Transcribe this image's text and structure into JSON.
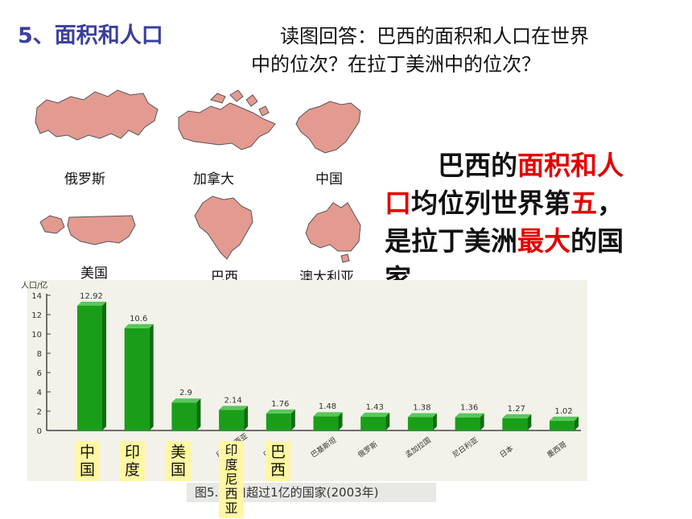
{
  "slide": {
    "title": "5、面积和人口",
    "question": [
      "读图回答：巴西的面积和人口在世界",
      "中的位次？在拉丁美洲中的位次？"
    ],
    "answer": {
      "line1": [
        {
          "t": "巴西的",
          "hl": false
        },
        {
          "t": "面积和人",
          "hl": true
        }
      ],
      "line2": [
        {
          "t": "口",
          "hl": true
        },
        {
          "t": "均位列世界第",
          "hl": false
        },
        {
          "t": "五",
          "hl": true
        },
        {
          "t": "，",
          "hl": false
        }
      ],
      "line3": [
        {
          "t": "是拉丁美洲",
          "hl": false
        },
        {
          "t": "最大",
          "hl": true
        },
        {
          "t": "的国",
          "hl": false
        }
      ],
      "line4": [
        {
          "t": "家。",
          "hl": false
        }
      ]
    },
    "highlight_color": "#e30000",
    "title_color": "#3b3f9e"
  },
  "maps": [
    {
      "name": "russia-map",
      "label": "俄罗斯"
    },
    {
      "name": "canada-map",
      "label": "加拿大"
    },
    {
      "name": "china-map",
      "label": "中国"
    },
    {
      "name": "usa-map",
      "label": "美国"
    },
    {
      "name": "brazil-map",
      "label": "巴西"
    },
    {
      "name": "australia-map",
      "label": "澳大利亚"
    }
  ],
  "map_color": "#e39a91",
  "bottom_labels": [
    "中国",
    "印度",
    "美国",
    "印度尼西亚",
    "巴西"
  ],
  "chart_data": {
    "type": "bar",
    "ylabel": "人口/亿",
    "ylim": [
      0,
      14
    ],
    "yticks": [
      0,
      2,
      4,
      6,
      8,
      10,
      12,
      14
    ],
    "categories": [
      "中国",
      "印度",
      "美国",
      "印度尼西亚",
      "巴西",
      "巴基斯坦",
      "俄罗斯",
      "孟加拉国",
      "尼日利亚",
      "日本",
      "墨西哥"
    ],
    "values": [
      12.92,
      10.6,
      2.9,
      2.14,
      1.76,
      1.48,
      1.43,
      1.38,
      1.36,
      1.27,
      1.02
    ],
    "value_labels": [
      "12.92",
      "10.6",
      "2.9",
      "2.14",
      "1.76",
      "1.48",
      "1.43",
      "1.38",
      "1.36",
      "1.27",
      "1.02"
    ],
    "bar_color": "#1a9e1a",
    "caption": "图5.  人口超过1亿的国家(2003年)"
  }
}
